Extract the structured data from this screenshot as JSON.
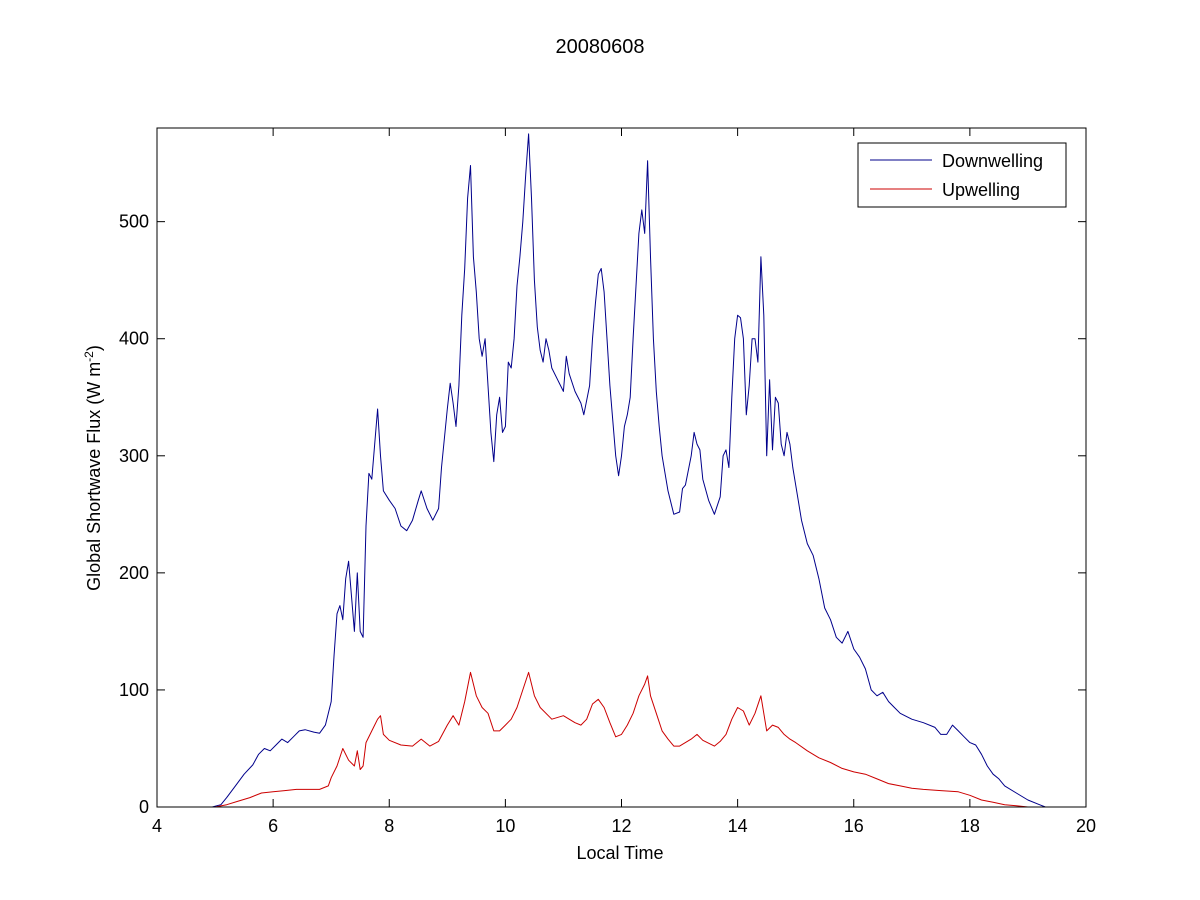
{
  "chart_data": {
    "type": "line",
    "title": "20080608",
    "xlabel": "Local Time",
    "ylabel": "Global Shortwave Flux (W m-2)",
    "ylabel_parts": {
      "main": "Global Shortwave Flux (W m",
      "sup": "-2",
      "close": ")"
    },
    "xlim": [
      4,
      20
    ],
    "ylim": [
      0,
      580
    ],
    "xticks": [
      4,
      6,
      8,
      10,
      12,
      14,
      16,
      18,
      20
    ],
    "yticks": [
      0,
      100,
      200,
      300,
      400,
      500
    ],
    "grid": false,
    "legend_position": "top-right",
    "series": [
      {
        "name": "Downwelling",
        "color": "#00008b",
        "points": [
          [
            4.95,
            0
          ],
          [
            5.1,
            2
          ],
          [
            5.2,
            8
          ],
          [
            5.35,
            18
          ],
          [
            5.5,
            28
          ],
          [
            5.65,
            36
          ],
          [
            5.75,
            45
          ],
          [
            5.85,
            50
          ],
          [
            5.95,
            48
          ],
          [
            6.05,
            53
          ],
          [
            6.15,
            58
          ],
          [
            6.25,
            55
          ],
          [
            6.35,
            60
          ],
          [
            6.45,
            65
          ],
          [
            6.55,
            66
          ],
          [
            6.7,
            64
          ],
          [
            6.8,
            63
          ],
          [
            6.9,
            70
          ],
          [
            7.0,
            90
          ],
          [
            7.05,
            130
          ],
          [
            7.1,
            165
          ],
          [
            7.15,
            172
          ],
          [
            7.2,
            160
          ],
          [
            7.25,
            195
          ],
          [
            7.3,
            210
          ],
          [
            7.35,
            180
          ],
          [
            7.4,
            150
          ],
          [
            7.45,
            200
          ],
          [
            7.5,
            150
          ],
          [
            7.55,
            145
          ],
          [
            7.6,
            240
          ],
          [
            7.65,
            285
          ],
          [
            7.7,
            280
          ],
          [
            7.75,
            310
          ],
          [
            7.8,
            340
          ],
          [
            7.85,
            300
          ],
          [
            7.9,
            270
          ],
          [
            8.0,
            262
          ],
          [
            8.1,
            255
          ],
          [
            8.2,
            240
          ],
          [
            8.3,
            236
          ],
          [
            8.4,
            245
          ],
          [
            8.5,
            262
          ],
          [
            8.55,
            270
          ],
          [
            8.65,
            255
          ],
          [
            8.75,
            245
          ],
          [
            8.85,
            255
          ],
          [
            8.9,
            290
          ],
          [
            9.0,
            340
          ],
          [
            9.05,
            362
          ],
          [
            9.1,
            345
          ],
          [
            9.15,
            325
          ],
          [
            9.2,
            360
          ],
          [
            9.25,
            420
          ],
          [
            9.3,
            460
          ],
          [
            9.35,
            520
          ],
          [
            9.4,
            548
          ],
          [
            9.45,
            470
          ],
          [
            9.5,
            440
          ],
          [
            9.55,
            400
          ],
          [
            9.6,
            385
          ],
          [
            9.65,
            400
          ],
          [
            9.7,
            360
          ],
          [
            9.75,
            320
          ],
          [
            9.8,
            295
          ],
          [
            9.85,
            335
          ],
          [
            9.9,
            350
          ],
          [
            9.95,
            320
          ],
          [
            10.0,
            325
          ],
          [
            10.05,
            380
          ],
          [
            10.1,
            375
          ],
          [
            10.15,
            400
          ],
          [
            10.2,
            445
          ],
          [
            10.25,
            470
          ],
          [
            10.3,
            500
          ],
          [
            10.35,
            540
          ],
          [
            10.4,
            575
          ],
          [
            10.45,
            520
          ],
          [
            10.5,
            450
          ],
          [
            10.55,
            410
          ],
          [
            10.6,
            390
          ],
          [
            10.65,
            380
          ],
          [
            10.7,
            400
          ],
          [
            10.75,
            390
          ],
          [
            10.8,
            375
          ],
          [
            10.9,
            365
          ],
          [
            11.0,
            355
          ],
          [
            11.05,
            385
          ],
          [
            11.1,
            370
          ],
          [
            11.2,
            355
          ],
          [
            11.3,
            345
          ],
          [
            11.35,
            335
          ],
          [
            11.45,
            360
          ],
          [
            11.5,
            400
          ],
          [
            11.55,
            430
          ],
          [
            11.6,
            455
          ],
          [
            11.65,
            460
          ],
          [
            11.7,
            440
          ],
          [
            11.75,
            400
          ],
          [
            11.8,
            360
          ],
          [
            11.85,
            330
          ],
          [
            11.9,
            300
          ],
          [
            11.95,
            283
          ],
          [
            12.0,
            300
          ],
          [
            12.05,
            325
          ],
          [
            12.1,
            335
          ],
          [
            12.15,
            350
          ],
          [
            12.2,
            400
          ],
          [
            12.25,
            445
          ],
          [
            12.3,
            490
          ],
          [
            12.35,
            510
          ],
          [
            12.4,
            490
          ],
          [
            12.45,
            552
          ],
          [
            12.5,
            470
          ],
          [
            12.55,
            400
          ],
          [
            12.6,
            355
          ],
          [
            12.65,
            325
          ],
          [
            12.7,
            300
          ],
          [
            12.8,
            270
          ],
          [
            12.9,
            250
          ],
          [
            13.0,
            252
          ],
          [
            13.05,
            272
          ],
          [
            13.1,
            275
          ],
          [
            13.2,
            300
          ],
          [
            13.25,
            320
          ],
          [
            13.3,
            310
          ],
          [
            13.35,
            305
          ],
          [
            13.4,
            280
          ],
          [
            13.5,
            262
          ],
          [
            13.6,
            250
          ],
          [
            13.7,
            265
          ],
          [
            13.75,
            300
          ],
          [
            13.8,
            305
          ],
          [
            13.85,
            290
          ],
          [
            13.9,
            350
          ],
          [
            13.95,
            400
          ],
          [
            14.0,
            420
          ],
          [
            14.05,
            418
          ],
          [
            14.1,
            400
          ],
          [
            14.15,
            335
          ],
          [
            14.2,
            360
          ],
          [
            14.25,
            400
          ],
          [
            14.3,
            400
          ],
          [
            14.35,
            380
          ],
          [
            14.4,
            470
          ],
          [
            14.45,
            420
          ],
          [
            14.5,
            300
          ],
          [
            14.55,
            365
          ],
          [
            14.6,
            305
          ],
          [
            14.65,
            350
          ],
          [
            14.7,
            345
          ],
          [
            14.75,
            310
          ],
          [
            14.8,
            300
          ],
          [
            14.85,
            320
          ],
          [
            14.9,
            310
          ],
          [
            14.95,
            290
          ],
          [
            15.0,
            275
          ],
          [
            15.05,
            260
          ],
          [
            15.1,
            245
          ],
          [
            15.2,
            225
          ],
          [
            15.3,
            215
          ],
          [
            15.4,
            195
          ],
          [
            15.5,
            170
          ],
          [
            15.6,
            160
          ],
          [
            15.7,
            145
          ],
          [
            15.8,
            140
          ],
          [
            15.9,
            150
          ],
          [
            16.0,
            135
          ],
          [
            16.1,
            128
          ],
          [
            16.2,
            118
          ],
          [
            16.3,
            100
          ],
          [
            16.4,
            95
          ],
          [
            16.5,
            98
          ],
          [
            16.6,
            90
          ],
          [
            16.7,
            85
          ],
          [
            16.8,
            80
          ],
          [
            17.0,
            75
          ],
          [
            17.2,
            72
          ],
          [
            17.4,
            68
          ],
          [
            17.5,
            62
          ],
          [
            17.6,
            62
          ],
          [
            17.7,
            70
          ],
          [
            17.8,
            65
          ],
          [
            17.9,
            60
          ],
          [
            18.0,
            55
          ],
          [
            18.1,
            53
          ],
          [
            18.2,
            45
          ],
          [
            18.3,
            35
          ],
          [
            18.4,
            28
          ],
          [
            18.5,
            24
          ],
          [
            18.6,
            18
          ],
          [
            18.8,
            12
          ],
          [
            19.0,
            6
          ],
          [
            19.2,
            2
          ],
          [
            19.3,
            0
          ]
        ]
      },
      {
        "name": "Upwelling",
        "color": "#cc0000",
        "points": [
          [
            5.0,
            0
          ],
          [
            5.2,
            2
          ],
          [
            5.4,
            5
          ],
          [
            5.6,
            8
          ],
          [
            5.8,
            12
          ],
          [
            6.0,
            13
          ],
          [
            6.2,
            14
          ],
          [
            6.4,
            15
          ],
          [
            6.6,
            15
          ],
          [
            6.8,
            15
          ],
          [
            6.95,
            18
          ],
          [
            7.0,
            25
          ],
          [
            7.1,
            35
          ],
          [
            7.2,
            50
          ],
          [
            7.3,
            40
          ],
          [
            7.4,
            35
          ],
          [
            7.45,
            48
          ],
          [
            7.5,
            32
          ],
          [
            7.55,
            35
          ],
          [
            7.6,
            55
          ],
          [
            7.7,
            65
          ],
          [
            7.8,
            75
          ],
          [
            7.85,
            78
          ],
          [
            7.9,
            62
          ],
          [
            8.0,
            57
          ],
          [
            8.2,
            53
          ],
          [
            8.4,
            52
          ],
          [
            8.55,
            58
          ],
          [
            8.7,
            52
          ],
          [
            8.85,
            56
          ],
          [
            9.0,
            70
          ],
          [
            9.1,
            78
          ],
          [
            9.2,
            70
          ],
          [
            9.3,
            90
          ],
          [
            9.4,
            115
          ],
          [
            9.5,
            95
          ],
          [
            9.6,
            85
          ],
          [
            9.7,
            80
          ],
          [
            9.8,
            65
          ],
          [
            9.9,
            65
          ],
          [
            10.0,
            70
          ],
          [
            10.1,
            75
          ],
          [
            10.2,
            85
          ],
          [
            10.3,
            100
          ],
          [
            10.4,
            115
          ],
          [
            10.5,
            95
          ],
          [
            10.6,
            85
          ],
          [
            10.8,
            75
          ],
          [
            11.0,
            78
          ],
          [
            11.2,
            72
          ],
          [
            11.3,
            70
          ],
          [
            11.4,
            75
          ],
          [
            11.5,
            88
          ],
          [
            11.6,
            92
          ],
          [
            11.7,
            85
          ],
          [
            11.8,
            72
          ],
          [
            11.9,
            60
          ],
          [
            12.0,
            62
          ],
          [
            12.1,
            70
          ],
          [
            12.2,
            80
          ],
          [
            12.3,
            95
          ],
          [
            12.4,
            105
          ],
          [
            12.45,
            112
          ],
          [
            12.5,
            95
          ],
          [
            12.6,
            80
          ],
          [
            12.7,
            65
          ],
          [
            12.8,
            58
          ],
          [
            12.9,
            52
          ],
          [
            13.0,
            52
          ],
          [
            13.2,
            58
          ],
          [
            13.3,
            62
          ],
          [
            13.4,
            57
          ],
          [
            13.6,
            52
          ],
          [
            13.7,
            56
          ],
          [
            13.8,
            62
          ],
          [
            13.9,
            75
          ],
          [
            14.0,
            85
          ],
          [
            14.1,
            82
          ],
          [
            14.2,
            70
          ],
          [
            14.3,
            80
          ],
          [
            14.4,
            95
          ],
          [
            14.5,
            65
          ],
          [
            14.6,
            70
          ],
          [
            14.7,
            68
          ],
          [
            14.8,
            62
          ],
          [
            14.9,
            58
          ],
          [
            15.0,
            55
          ],
          [
            15.2,
            48
          ],
          [
            15.4,
            42
          ],
          [
            15.6,
            38
          ],
          [
            15.8,
            33
          ],
          [
            16.0,
            30
          ],
          [
            16.2,
            28
          ],
          [
            16.4,
            24
          ],
          [
            16.6,
            20
          ],
          [
            16.8,
            18
          ],
          [
            17.0,
            16
          ],
          [
            17.2,
            15
          ],
          [
            17.5,
            14
          ],
          [
            17.8,
            13
          ],
          [
            18.0,
            10
          ],
          [
            18.2,
            6
          ],
          [
            18.4,
            4
          ],
          [
            18.6,
            2
          ],
          [
            18.8,
            1
          ],
          [
            19.0,
            0
          ]
        ]
      }
    ]
  }
}
